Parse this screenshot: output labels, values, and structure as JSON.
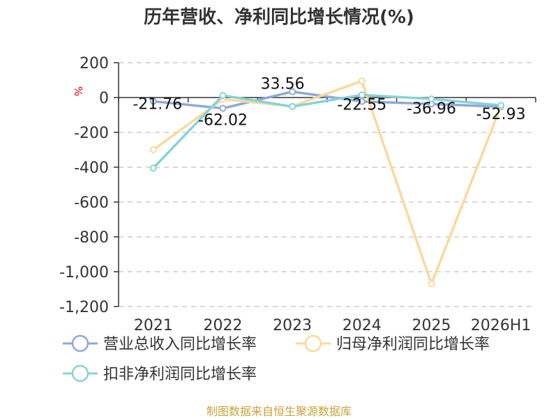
{
  "chart_data": {
    "type": "line",
    "title": "历年营收、净利同比增长情况(%)",
    "y_unit": "%",
    "categories": [
      "2021",
      "2022",
      "2023",
      "2024",
      "2025",
      "2026H1"
    ],
    "yticks": [
      "200",
      "0",
      "-200",
      "-400",
      "-600",
      "-800",
      "-1,000",
      "-1,200"
    ],
    "ylim": [
      -1200,
      200
    ],
    "grid": true,
    "legend_position": "bottom",
    "series": [
      {
        "name": "营业总收入同比增长率",
        "color": "#8fa8d8",
        "values": [
          -21.76,
          -62.02,
          33.56,
          -22.55,
          -36.96,
          -52.93
        ],
        "labels": [
          "-21.76",
          "-62.02",
          "33.56",
          "-22.55",
          "-36.96",
          "-52.93"
        ]
      },
      {
        "name": "归母净利润同比增长率",
        "color": "#f9d99a",
        "values": [
          -300,
          -10,
          -50,
          95,
          -1070,
          -50
        ]
      },
      {
        "name": "扣非净利润同比增长率",
        "color": "#86d3d8",
        "values": [
          -405,
          12,
          -52,
          15,
          -8,
          -45
        ]
      }
    ]
  },
  "source": "制图数据来自恒生聚源数据库"
}
